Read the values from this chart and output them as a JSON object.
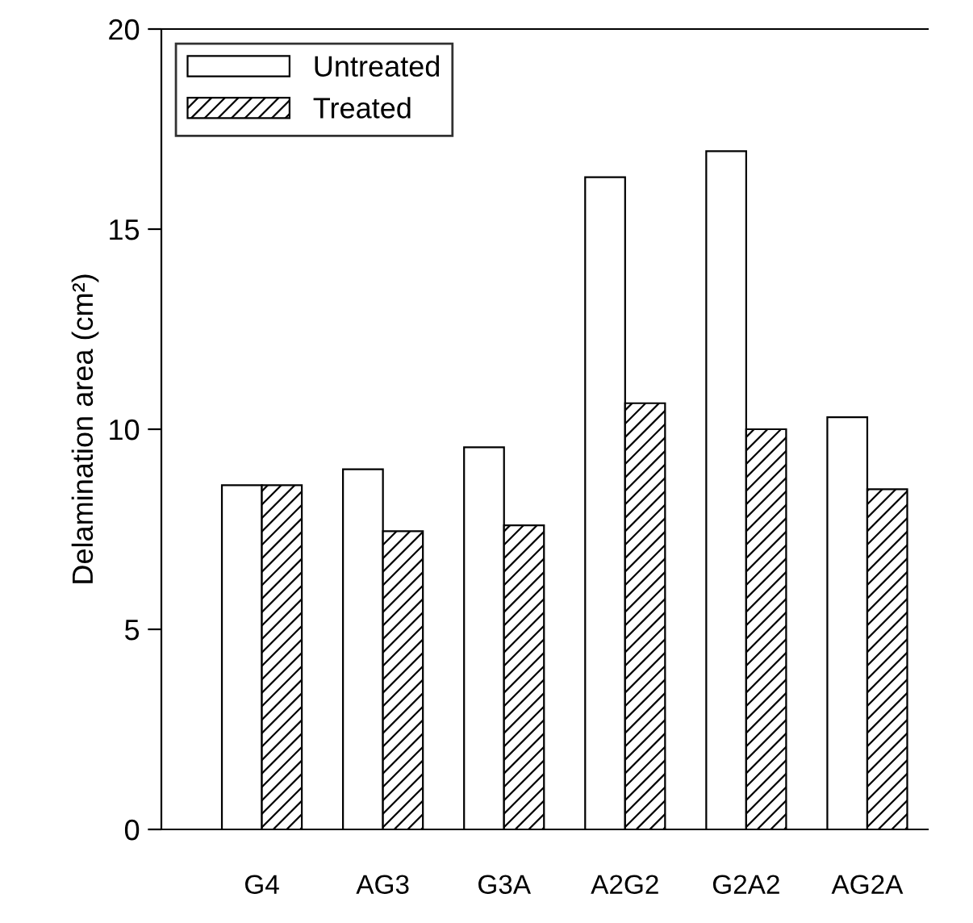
{
  "chart_data": {
    "type": "bar",
    "ylabel": "Delamination area (cm²)",
    "categories": [
      "G4",
      "AG3",
      "G3A",
      "A2G2",
      "G2A2",
      "AG2A"
    ],
    "series": [
      {
        "name": "Untreated",
        "color": "#ffffff",
        "values": [
          8.6,
          9.0,
          9.55,
          16.3,
          16.95,
          10.3
        ]
      },
      {
        "name": "Treated",
        "color": "#000000",
        "values": [
          8.6,
          7.45,
          7.6,
          10.65,
          10.0,
          8.5
        ]
      }
    ],
    "ylim": [
      0,
      20
    ],
    "yticks": [
      0,
      5,
      10,
      15,
      20
    ],
    "legend": "top left",
    "grid": false
  }
}
